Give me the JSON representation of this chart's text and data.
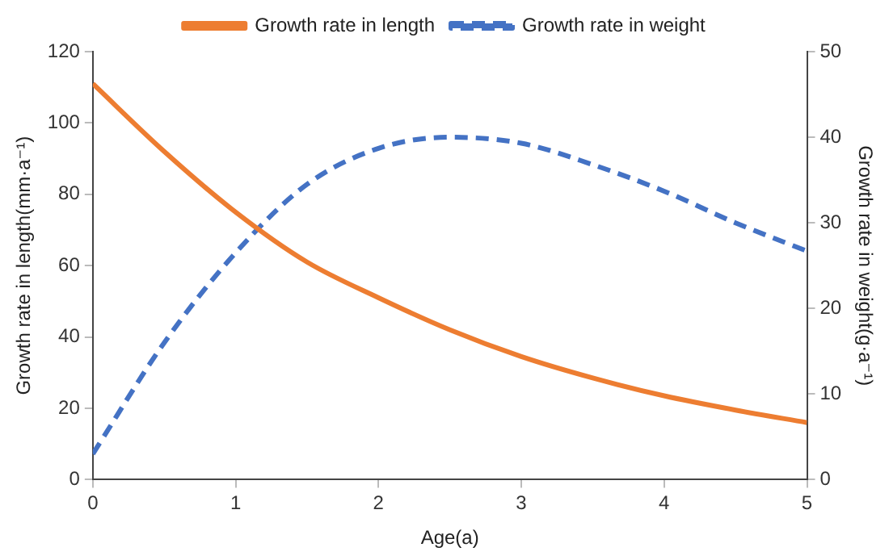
{
  "chart_data": {
    "type": "line",
    "xlabel": "Age(a)",
    "ylabel": "Growth rate in length(mm·a⁻¹)",
    "y2label": "Growth rate in weight(g·a⁻¹)",
    "x": [
      0,
      0.5,
      1,
      1.5,
      2,
      2.5,
      3,
      3.5,
      4,
      4.5,
      5
    ],
    "series": [
      {
        "name": "Growth rate in length",
        "color": "#ed7d31",
        "line_style": "solid",
        "values": [
          111,
          92,
          75,
          61,
          51,
          42,
          34.5,
          28.5,
          23.5,
          19.5,
          16
        ]
      },
      {
        "name": "Growth rate in weight",
        "color": "#4472c4",
        "line_style": "dashed",
        "axis": "y2",
        "values": [
          3,
          16,
          26.5,
          34.5,
          38.7,
          40,
          39.3,
          36.8,
          33.7,
          30,
          26.7
        ]
      }
    ],
    "xlim": [
      0,
      5
    ],
    "xticks": [
      0,
      1,
      2,
      3,
      4,
      5
    ],
    "ylim": [
      0,
      120
    ],
    "yticks": [
      0,
      20,
      40,
      60,
      80,
      100,
      120
    ],
    "y2lim": [
      0,
      50
    ],
    "y2ticks": [
      0,
      10,
      20,
      30,
      40,
      50
    ],
    "grid": false,
    "legend": "top",
    "marker": "none"
  }
}
